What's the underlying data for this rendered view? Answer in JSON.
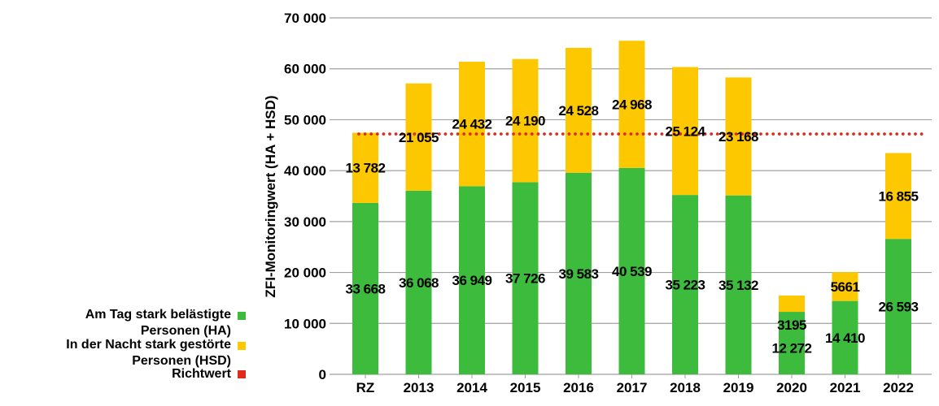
{
  "chart_data": {
    "type": "bar",
    "stacked": true,
    "categories": [
      "RZ",
      "2013",
      "2014",
      "2015",
      "2016",
      "2017",
      "2018",
      "2019",
      "2020",
      "2021",
      "2022"
    ],
    "series": [
      {
        "name": "Am Tag stark belästigte Personen (HA)",
        "color": "#3dbb3d",
        "values": [
          33668,
          36068,
          36949,
          37726,
          39583,
          40539,
          35223,
          35132,
          12272,
          14410,
          26593
        ],
        "labels": [
          "33 668",
          "36 068",
          "36 949",
          "37 726",
          "39 583",
          "40 539",
          "35 223",
          "35 132",
          "12 272",
          "14 410",
          "26 593"
        ]
      },
      {
        "name": "In der Nacht stark gestörte Personen (HSD)",
        "color": "#fdc800",
        "values": [
          13782,
          21055,
          24432,
          24190,
          24528,
          24968,
          25124,
          23168,
          3195,
          5661,
          16855
        ],
        "labels": [
          "13 782",
          "21 055",
          "24 432",
          "24 190",
          "24 528",
          "24 968",
          "25 124",
          "23 168",
          "3195",
          "5661",
          "16 855"
        ]
      }
    ],
    "reference_line": {
      "name": "Richtwert",
      "value": 47200,
      "color": "#e02a1d",
      "style": "dotted"
    },
    "ylabel": "ZFI-Monitoringwert (HA + HSD)",
    "ylim": [
      0,
      70000
    ],
    "yticks": [
      0,
      10000,
      20000,
      30000,
      40000,
      50000,
      60000,
      70000
    ],
    "ytick_labels": [
      "0",
      "10 000",
      "20 000",
      "30 000",
      "40 000",
      "50 000",
      "60 000",
      "70 000"
    ],
    "grid": true,
    "legend_placement": "bottom-left",
    "legend": [
      {
        "line1": "Am Tag stark belästigte",
        "line2": "Personen (HA)",
        "color": "#3dbb3d"
      },
      {
        "line1": "In der Nacht stark gestörte",
        "line2": "Personen (HSD)",
        "color": "#fdc800"
      },
      {
        "line1": "Richtwert",
        "color": "#e02a1d"
      }
    ]
  }
}
